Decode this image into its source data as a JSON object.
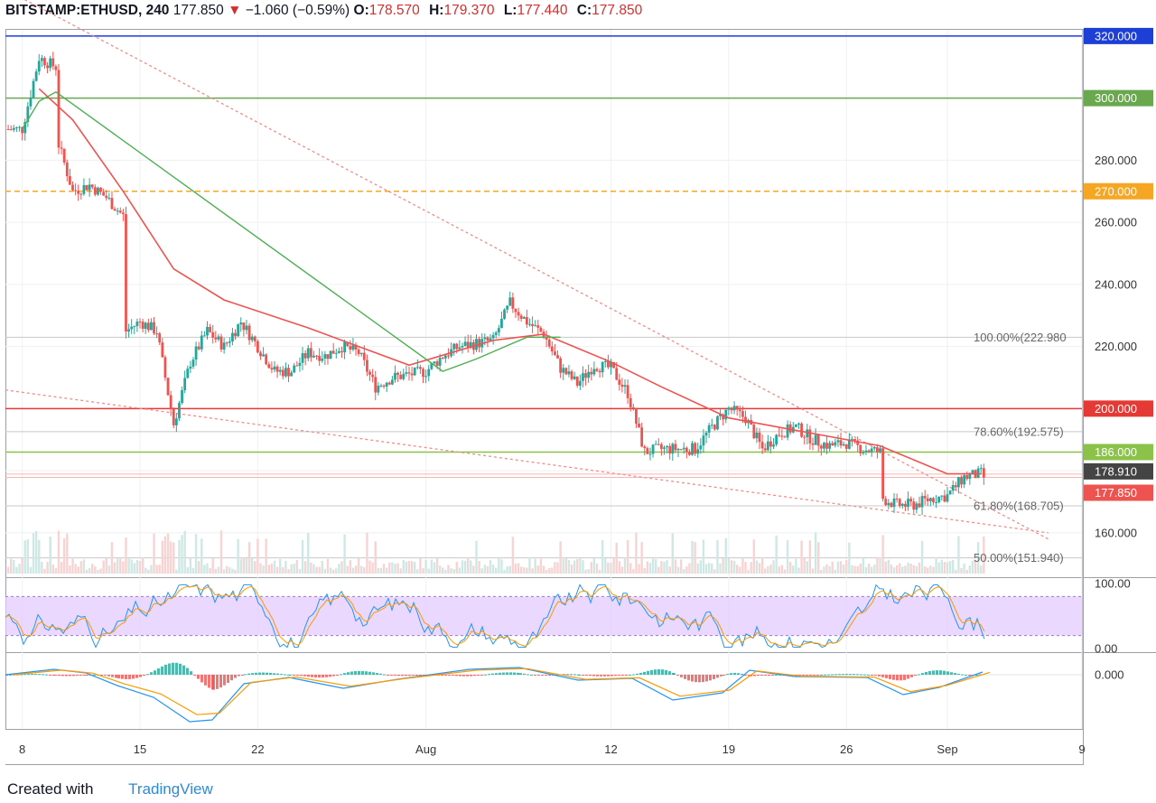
{
  "header": {
    "symbol": "BITSTAMP:ETHUSD, 240",
    "last": "177.850",
    "change": "−1.060 (−0.59%)",
    "o_label": "O:",
    "o": "178.570",
    "h_label": "H:",
    "h": "179.370",
    "l_label": "L:",
    "l": "177.440",
    "c_label": "C:",
    "c": "177.850"
  },
  "footer": {
    "created": "Created with",
    "brand": "TradingView"
  },
  "colors": {
    "up": "#26a69a",
    "down": "#ef5350",
    "ma_red": "#ef5350",
    "ma_green": "#4caf50",
    "stoch_band": "#e1c8ff",
    "macd_blue": "#2196f3",
    "macd_orange": "#ff9800"
  },
  "chart_data": {
    "type": "candlestick",
    "instrument": "BITSTAMP:ETHUSD",
    "interval": "240",
    "ylim": [
      146,
      322
    ],
    "y_ticks": [
      160,
      180,
      200,
      220,
      240,
      260,
      280,
      300,
      320
    ],
    "y_tick_labels": [
      "160.000",
      "",
      "",
      "220.000",
      "240.000",
      "260.000",
      "280.000",
      "",
      ""
    ],
    "x_tick_labels": [
      "8",
      "15",
      "22",
      "Aug",
      "12",
      "19",
      "26",
      "Sep",
      "9"
    ],
    "x_tick_dates": [
      "2019-07-08",
      "2019-07-15",
      "2019-07-22",
      "2019-08-01",
      "2019-08-12",
      "2019-08-19",
      "2019-08-26",
      "2019-09-01",
      "2019-09-09"
    ],
    "date_range": [
      "2019-07-07",
      "2019-09-09"
    ],
    "price_keypoints": [
      {
        "date": "2019-07-07",
        "value": 290
      },
      {
        "date": "2019-07-08",
        "value": 290
      },
      {
        "date": "2019-07-09",
        "value": 313
      },
      {
        "date": "2019-07-10",
        "value": 310
      },
      {
        "date": "2019-07-10",
        "value": 285
      },
      {
        "date": "2019-07-11",
        "value": 270
      },
      {
        "date": "2019-07-12",
        "value": 272
      },
      {
        "date": "2019-07-13",
        "value": 268
      },
      {
        "date": "2019-07-14",
        "value": 262
      },
      {
        "date": "2019-07-14",
        "value": 225
      },
      {
        "date": "2019-07-15",
        "value": 228
      },
      {
        "date": "2019-07-16",
        "value": 225
      },
      {
        "date": "2019-07-17",
        "value": 195
      },
      {
        "date": "2019-07-18",
        "value": 215
      },
      {
        "date": "2019-07-19",
        "value": 225
      },
      {
        "date": "2019-07-20",
        "value": 220
      },
      {
        "date": "2019-07-21",
        "value": 228
      },
      {
        "date": "2019-07-22",
        "value": 220
      },
      {
        "date": "2019-07-23",
        "value": 212
      },
      {
        "date": "2019-07-24",
        "value": 212
      },
      {
        "date": "2019-07-25",
        "value": 218
      },
      {
        "date": "2019-07-26",
        "value": 217
      },
      {
        "date": "2019-07-27",
        "value": 220
      },
      {
        "date": "2019-07-28",
        "value": 218
      },
      {
        "date": "2019-07-29",
        "value": 207
      },
      {
        "date": "2019-07-30",
        "value": 210
      },
      {
        "date": "2019-07-31",
        "value": 211
      },
      {
        "date": "2019-08-01",
        "value": 212
      },
      {
        "date": "2019-08-02",
        "value": 217
      },
      {
        "date": "2019-08-03",
        "value": 220
      },
      {
        "date": "2019-08-05",
        "value": 222
      },
      {
        "date": "2019-08-06",
        "value": 234
      },
      {
        "date": "2019-08-07",
        "value": 228
      },
      {
        "date": "2019-08-08",
        "value": 224
      },
      {
        "date": "2019-08-09",
        "value": 213
      },
      {
        "date": "2019-08-10",
        "value": 208
      },
      {
        "date": "2019-08-11",
        "value": 214
      },
      {
        "date": "2019-08-12",
        "value": 213
      },
      {
        "date": "2019-08-13",
        "value": 205
      },
      {
        "date": "2019-08-14",
        "value": 186
      },
      {
        "date": "2019-08-15",
        "value": 187
      },
      {
        "date": "2019-08-16",
        "value": 187
      },
      {
        "date": "2019-08-17",
        "value": 187
      },
      {
        "date": "2019-08-18",
        "value": 194
      },
      {
        "date": "2019-08-19",
        "value": 200
      },
      {
        "date": "2019-08-20",
        "value": 197
      },
      {
        "date": "2019-08-21",
        "value": 187
      },
      {
        "date": "2019-08-22",
        "value": 192
      },
      {
        "date": "2019-08-23",
        "value": 194
      },
      {
        "date": "2019-08-24",
        "value": 190
      },
      {
        "date": "2019-08-25",
        "value": 188
      },
      {
        "date": "2019-08-26",
        "value": 189
      },
      {
        "date": "2019-08-27",
        "value": 187
      },
      {
        "date": "2019-08-28",
        "value": 186
      },
      {
        "date": "2019-08-28",
        "value": 171
      },
      {
        "date": "2019-08-29",
        "value": 169
      },
      {
        "date": "2019-08-30",
        "value": 169
      },
      {
        "date": "2019-08-31",
        "value": 171
      },
      {
        "date": "2019-09-01",
        "value": 172
      },
      {
        "date": "2019-09-02",
        "value": 178
      },
      {
        "date": "2019-09-03",
        "value": 179
      },
      {
        "date": "2019-09-03",
        "value": 177.85
      }
    ],
    "moving_average_red": [
      {
        "date": "2019-07-09",
        "value": 303
      },
      {
        "date": "2019-07-11",
        "value": 293
      },
      {
        "date": "2019-07-14",
        "value": 270
      },
      {
        "date": "2019-07-17",
        "value": 245
      },
      {
        "date": "2019-07-20",
        "value": 235
      },
      {
        "date": "2019-07-25",
        "value": 226
      },
      {
        "date": "2019-07-31",
        "value": 214
      },
      {
        "date": "2019-08-05",
        "value": 222
      },
      {
        "date": "2019-08-08",
        "value": 224
      },
      {
        "date": "2019-08-12",
        "value": 215
      },
      {
        "date": "2019-08-15",
        "value": 207
      },
      {
        "date": "2019-08-19",
        "value": 197
      },
      {
        "date": "2019-08-24",
        "value": 192
      },
      {
        "date": "2019-08-28",
        "value": 188
      },
      {
        "date": "2019-09-01",
        "value": 179
      },
      {
        "date": "2019-09-03",
        "value": 179
      }
    ],
    "moving_average_green": [
      {
        "date": "2019-07-08",
        "value": 290
      },
      {
        "date": "2019-07-09",
        "value": 299
      },
      {
        "date": "2019-07-10",
        "value": 302
      },
      {
        "date": "2019-08-02",
        "value": 212
      },
      {
        "date": "2019-08-04",
        "value": 216
      },
      {
        "date": "2019-08-07",
        "value": 223
      },
      {
        "date": "2019-08-09",
        "value": 223
      }
    ],
    "horizontal_levels": [
      {
        "value": 320.0,
        "label": "320.000",
        "color": "#1e3fd6",
        "style": "solid"
      },
      {
        "value": 300.0,
        "label": "300.000",
        "color": "#6aa84f",
        "style": "solid"
      },
      {
        "value": 270.0,
        "label": "270.000",
        "color": "#f5a623",
        "style": "dashed"
      },
      {
        "value": 200.0,
        "label": "200.000",
        "color": "#e53935",
        "style": "solid"
      },
      {
        "value": 186.0,
        "label": "186.000",
        "color": "#8bc34a",
        "style": "solid"
      }
    ],
    "fibonacci_levels": [
      {
        "ratio": "100.00%",
        "value": 222.98,
        "text": "100.00%(222.980"
      },
      {
        "ratio": "78.60%",
        "value": 192.575,
        "text": "78.60%(192.575)"
      },
      {
        "ratio": "61.80%",
        "value": 168.705,
        "text": "61.80%(168.705)"
      },
      {
        "ratio": "50.00%",
        "value": 151.94,
        "text": "50.00%(151.940)"
      }
    ],
    "price_tags": [
      {
        "label": "178.910",
        "value": 178.91,
        "color": "#444444"
      },
      {
        "label": "177.850",
        "value": 177.85,
        "color": "#ef5350"
      }
    ],
    "trendlines": [
      {
        "from": {
          "date": "2019-07-07",
          "value": 335
        },
        "to": {
          "date": "2019-09-07",
          "value": 158
        }
      },
      {
        "from": {
          "date": "2019-07-07",
          "value": 206
        },
        "to": {
          "date": "2019-09-07",
          "value": 160
        }
      }
    ],
    "stochastic": {
      "ylim": [
        0,
        100
      ],
      "tick_labels": [
        "100.00",
        "0.00"
      ],
      "band": [
        20,
        80
      ]
    },
    "macd": {
      "tick_labels": [
        "0.000"
      ],
      "zero": 0
    }
  }
}
